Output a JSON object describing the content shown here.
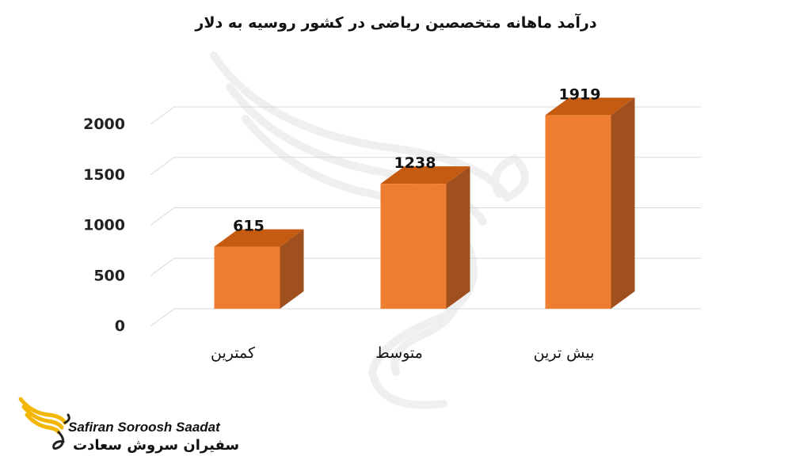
{
  "chart_data": {
    "type": "bar",
    "style": "3d-column",
    "title": "درآمد ماهانه متخصصین ریاضی در کشور روسیه به دلار",
    "categories": [
      "کمترین",
      "متوسط",
      "بیش ترین"
    ],
    "values": [
      615,
      1238,
      1919
    ],
    "data_labels": [
      "615",
      "1238",
      "1919"
    ],
    "y_ticks": [
      "0",
      "500",
      "1000",
      "1500",
      "2000"
    ],
    "ylim": [
      0,
      2000
    ],
    "grid": true,
    "legend": "none",
    "colors": {
      "bar_front": "#ED7D31",
      "bar_top": "#C55A11",
      "bar_side": "#A0501E",
      "gridline": "#D9D9D9"
    }
  },
  "branding": {
    "name_en": "Safiran Soroosh Saadat",
    "name_fa": "سفیران سروش سعادت",
    "logo_icon": "bird-wing-logo",
    "logo_color": "#F2B705",
    "watermark": "bird-wing-watermark"
  }
}
